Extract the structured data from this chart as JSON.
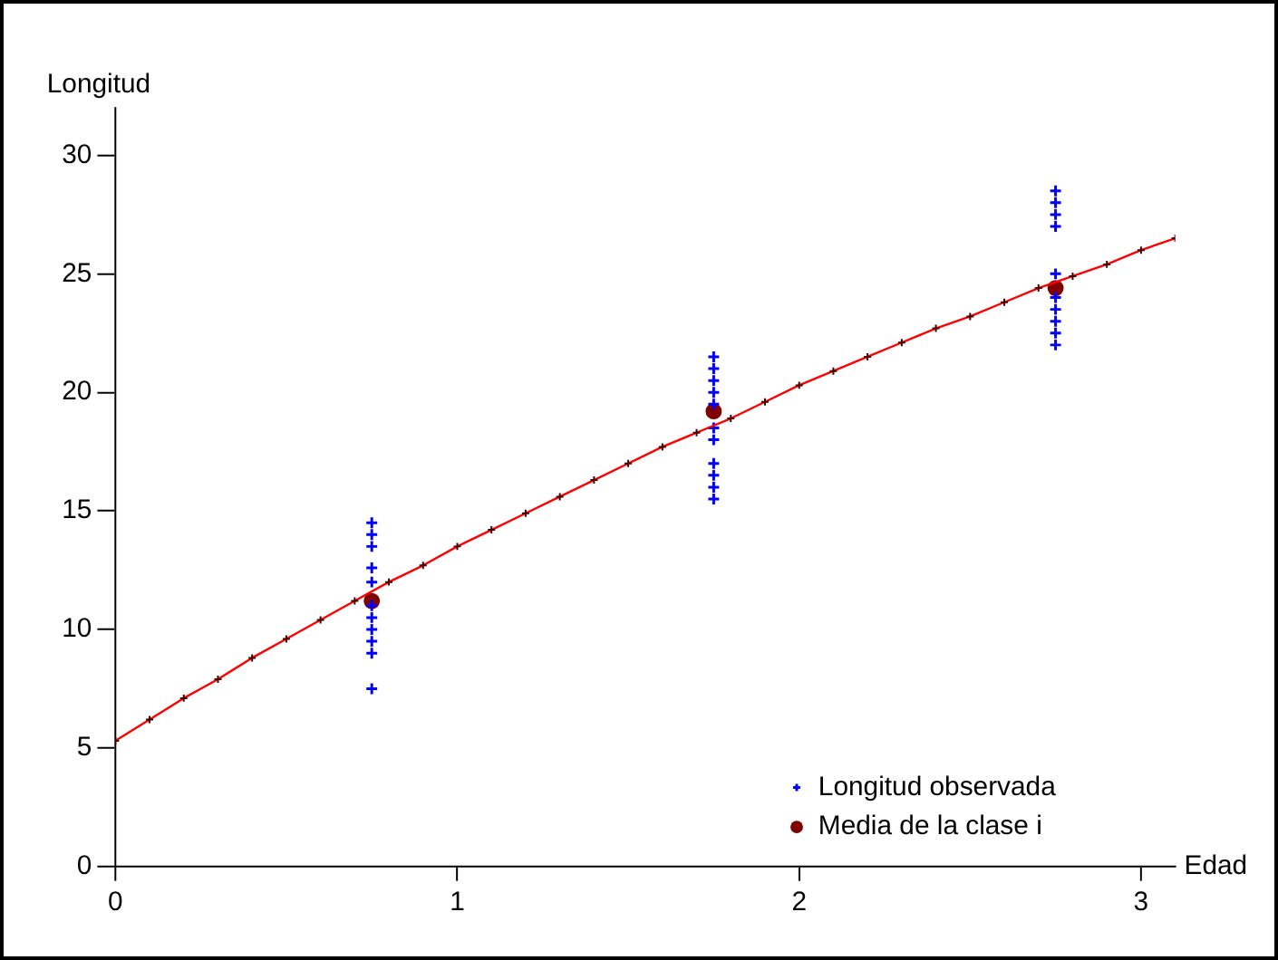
{
  "chart_data": {
    "type": "scatter",
    "xlabel": "Edad",
    "ylabel": "Longitud",
    "xlim": [
      0,
      3.1
    ],
    "ylim": [
      0,
      32
    ],
    "xticks": [
      0,
      1,
      2,
      3
    ],
    "yticks": [
      0,
      5,
      10,
      15,
      20,
      25,
      30
    ],
    "grid": false,
    "legend": "bottom right",
    "series": [
      {
        "type": "line",
        "color": "#ff0000",
        "marker": "cross",
        "line_style": "solid",
        "x": [
          0,
          0.1,
          0.2,
          0.3,
          0.4,
          0.5,
          0.6,
          0.7,
          0.8,
          0.9,
          1.0,
          1.1,
          1.2,
          1.3,
          1.4,
          1.5,
          1.6,
          1.7,
          1.8,
          1.9,
          2.0,
          2.1,
          2.2,
          2.3,
          2.4,
          2.5,
          2.6,
          2.7,
          2.8,
          2.9,
          3.0,
          3.1
        ],
        "values": [
          5.3,
          6.2,
          7.1,
          7.9,
          8.8,
          9.6,
          10.4,
          11.2,
          12.0,
          12.7,
          13.5,
          14.2,
          14.9,
          15.6,
          16.3,
          17.0,
          17.7,
          18.3,
          18.9,
          19.6,
          20.3,
          20.9,
          21.5,
          22.1,
          22.7,
          23.2,
          23.8,
          24.4,
          24.9,
          25.4,
          26.0,
          26.5
        ]
      },
      {
        "name": "Longitud observada",
        "color": "#0000ff",
        "marker": "cross",
        "x": [
          0.75,
          0.75,
          0.75,
          0.75,
          0.75,
          0.75,
          0.75,
          0.75,
          0.75,
          0.75,
          0.75,
          1.75,
          1.75,
          1.75,
          1.75,
          1.75,
          1.75,
          1.75,
          1.75,
          1.75,
          1.75,
          1.75,
          2.75,
          2.75,
          2.75,
          2.75,
          2.75,
          2.75,
          2.75,
          2.75,
          2.75,
          2.75
        ],
        "values": [
          14.5,
          14.0,
          13.5,
          12.6,
          12.0,
          11.0,
          10.5,
          10.0,
          9.5,
          9.0,
          7.5,
          21.5,
          21.0,
          20.5,
          20.0,
          19.5,
          18.5,
          18.0,
          17.0,
          16.5,
          16.0,
          15.5,
          28.5,
          28.0,
          27.5,
          27.0,
          25.0,
          24.0,
          23.5,
          23.0,
          22.5,
          22.0
        ]
      },
      {
        "name": "Media de la clase i",
        "color": "#800000",
        "marker": "circle",
        "x": [
          0.75,
          1.75,
          2.75
        ],
        "values": [
          11.2,
          19.2,
          24.4
        ]
      }
    ]
  }
}
